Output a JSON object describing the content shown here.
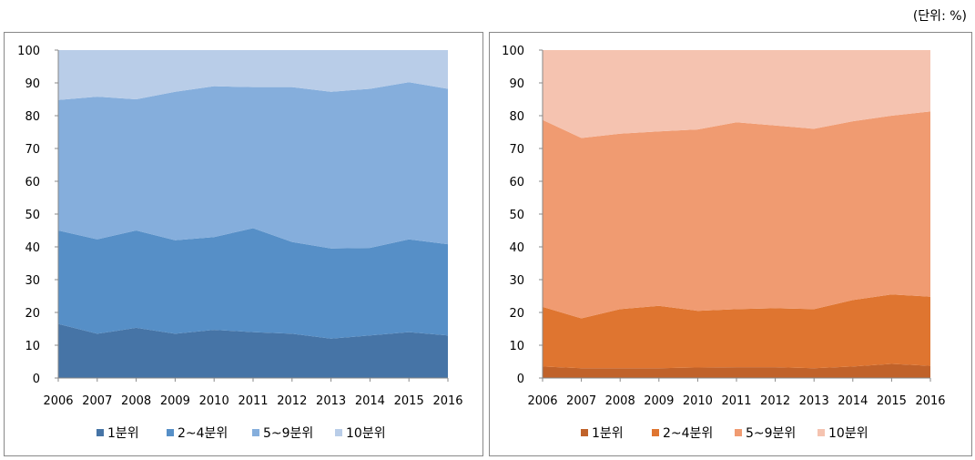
{
  "unit_note": "(단위: %)",
  "chart_data": [
    {
      "type": "stacked_area",
      "categories": [
        "2006",
        "2007",
        "2008",
        "2009",
        "2010",
        "2011",
        "2012",
        "2013",
        "2014",
        "2015",
        "2016"
      ],
      "ylim": [
        0,
        100
      ],
      "yticks": [
        0,
        10,
        20,
        30,
        40,
        50,
        60,
        70,
        80,
        90,
        100
      ],
      "legend": "bottom",
      "series": [
        {
          "name": "1분위",
          "color": "#4674a6",
          "values": [
            16.5,
            13.5,
            15.3,
            13.5,
            14.7,
            14,
            13.5,
            12,
            13,
            14,
            13
          ]
        },
        {
          "name": "2~4분위",
          "color": "#568fc7",
          "values": [
            28.5,
            28.8,
            29.7,
            28.5,
            28.3,
            31.7,
            28,
            27.5,
            26.7,
            28.3,
            27.8
          ]
        },
        {
          "name": "5~9분위",
          "color": "#85aedc",
          "values": [
            39.8,
            43.5,
            40,
            45.3,
            46,
            43,
            47.2,
            47.8,
            48.5,
            47.9,
            47.4
          ]
        },
        {
          "name": "10분위",
          "color": "#b9cde8",
          "values": [
            15.2,
            14.2,
            15,
            12.7,
            11,
            11.3,
            11.3,
            12.7,
            11.8,
            9.8,
            11.8
          ]
        }
      ]
    },
    {
      "type": "stacked_area",
      "categories": [
        "2006",
        "2007",
        "2008",
        "2009",
        "2010",
        "2011",
        "2012",
        "2013",
        "2014",
        "2015",
        "2016"
      ],
      "ylim": [
        0,
        100
      ],
      "yticks": [
        0,
        10,
        20,
        30,
        40,
        50,
        60,
        70,
        80,
        90,
        100
      ],
      "legend": "bottom",
      "series": [
        {
          "name": "1분위",
          "color": "#c0622a",
          "values": [
            3.5,
            3,
            3,
            3,
            3.2,
            3.3,
            3.3,
            3,
            3.5,
            4.3,
            3.7
          ]
        },
        {
          "name": "2~4분위",
          "color": "#df7530",
          "values": [
            18.2,
            15.2,
            18,
            19,
            17.3,
            17.7,
            18,
            18,
            20.3,
            21.2,
            21.1
          ]
        },
        {
          "name": "5~9분위",
          "color": "#f09b71",
          "values": [
            57,
            55,
            53.5,
            53.2,
            55.3,
            57,
            55.7,
            55,
            54.5,
            54.5,
            56.5
          ]
        },
        {
          "name": "10분위",
          "color": "#f5c3b0",
          "values": [
            21.3,
            26.8,
            25.5,
            24.8,
            24.2,
            22,
            23,
            24,
            21.7,
            20,
            18.7
          ]
        }
      ]
    }
  ]
}
